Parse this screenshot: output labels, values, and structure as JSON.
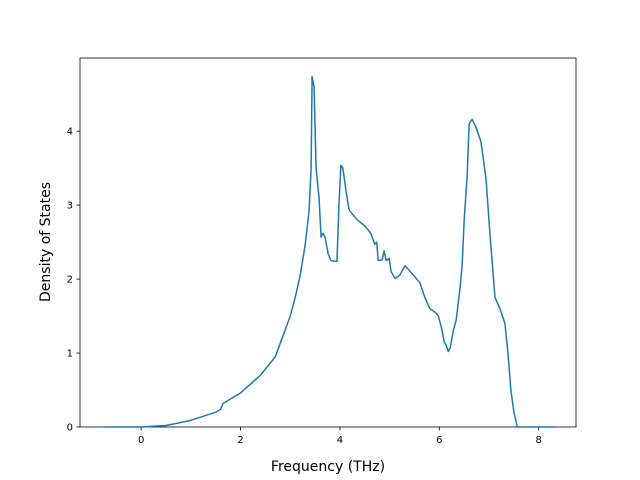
{
  "chart_data": {
    "type": "line",
    "xlabel": "Frequency (THz)",
    "ylabel": "Density of States",
    "xlim": [
      -1.23,
      8.75
    ],
    "ylim": [
      0,
      4.99
    ],
    "xticks": [
      0,
      2,
      4,
      6,
      8
    ],
    "yticks": [
      0,
      1,
      2,
      3,
      4
    ],
    "grid": false,
    "series": [
      {
        "color": "#1f77b4",
        "x": [
          -0.75,
          0,
          0.5,
          1.0,
          1.5,
          1.6,
          1.65,
          2.0,
          2.4,
          2.7,
          3.0,
          3.1,
          3.2,
          3.3,
          3.38,
          3.42,
          3.44,
          3.48,
          3.52,
          3.58,
          3.62,
          3.66,
          3.7,
          3.76,
          3.82,
          3.94,
          3.98,
          4.02,
          4.06,
          4.12,
          4.18,
          4.2,
          4.35,
          4.5,
          4.62,
          4.7,
          4.74,
          4.77,
          4.85,
          4.89,
          4.93,
          4.99,
          5.03,
          5.11,
          5.2,
          5.31,
          5.51,
          5.61,
          5.71,
          5.81,
          5.92,
          5.98,
          6.04,
          6.1,
          6.14,
          6.18,
          6.22,
          6.28,
          6.34,
          6.42,
          6.46,
          6.5,
          6.56,
          6.6,
          6.66,
          6.74,
          6.84,
          6.94,
          7.02,
          7.12,
          7.22,
          7.32,
          7.38,
          7.44,
          7.5,
          7.57,
          8.31
        ],
        "values": [
          0,
          0,
          0.02,
          0.09,
          0.2,
          0.24,
          0.32,
          0.46,
          0.7,
          0.95,
          1.5,
          1.75,
          2.05,
          2.46,
          2.93,
          3.5,
          4.74,
          4.6,
          3.5,
          3.1,
          2.57,
          2.62,
          2.57,
          2.35,
          2.25,
          2.24,
          3.0,
          3.54,
          3.5,
          3.2,
          2.95,
          2.92,
          2.8,
          2.72,
          2.62,
          2.47,
          2.5,
          2.25,
          2.26,
          2.38,
          2.25,
          2.28,
          2.1,
          2.01,
          2.05,
          2.18,
          2.03,
          1.95,
          1.75,
          1.6,
          1.55,
          1.5,
          1.35,
          1.15,
          1.1,
          1.02,
          1.07,
          1.3,
          1.45,
          1.9,
          2.2,
          2.8,
          3.4,
          4.1,
          4.16,
          4.05,
          3.85,
          3.35,
          2.6,
          1.75,
          1.6,
          1.4,
          1.0,
          0.5,
          0.2,
          0,
          0
        ]
      }
    ]
  }
}
